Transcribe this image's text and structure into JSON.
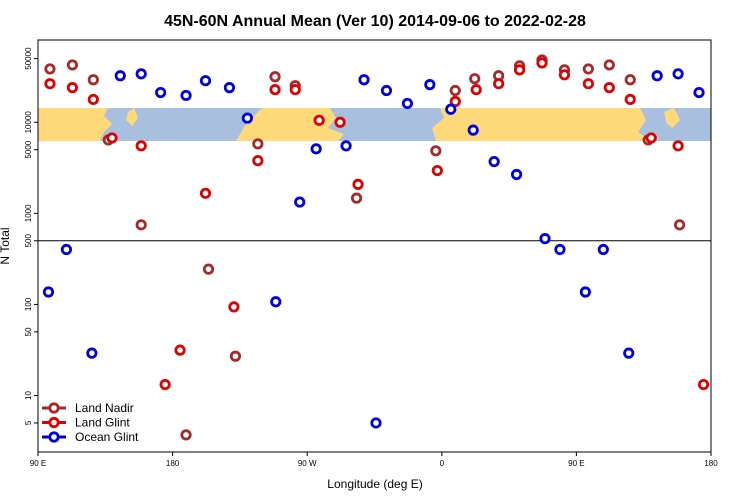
{
  "chart_data": {
    "type": "scatter",
    "title": "45N-60N Annual Mean (Ver 10)   2014-09-06 to 2022-02-28",
    "xlabel": "Longitude (deg E)",
    "ylabel": "N Total",
    "xlim": [
      90,
      540
    ],
    "xticks": [
      {
        "value": 90,
        "label": "90 E"
      },
      180,
      {
        "value": 270,
        "label": "90 W"
      },
      {
        "value": 360,
        "label": "0"
      },
      {
        "value": 450,
        "label": "90 E"
      },
      {
        "value": 540,
        "label": "180"
      }
    ],
    "ylim": [
      2.4,
      80000
    ],
    "yticks": [
      5,
      10,
      50,
      100,
      500,
      1000,
      5000,
      10000,
      50000
    ],
    "log_y": true,
    "hline": 500,
    "legend": "lower left",
    "series": [
      {
        "name": "Land Nadir",
        "color": "#a52a2a",
        "x": [
          98,
          113,
          127,
          137,
          159,
          189,
          204,
          222,
          237,
          248.5,
          262,
          303,
          356,
          369,
          382,
          398,
          412,
          427,
          442,
          458,
          472,
          486,
          498,
          519
        ],
        "values": [
          38500,
          42600,
          29300,
          6400,
          748,
          3.7,
          244,
          27,
          5790,
          31600,
          25200,
          1470,
          4860,
          22300,
          30100,
          32400,
          41600,
          48300,
          37600,
          38500,
          42600,
          29300,
          6400,
          748
        ]
      },
      {
        "name": "Land Glint",
        "color": "#e00000",
        "x": [
          98,
          113,
          127,
          139.5,
          159,
          175,
          185,
          202,
          221,
          237,
          248.5,
          262,
          278,
          292,
          304,
          357,
          369,
          383,
          398,
          412,
          427,
          442,
          458,
          472,
          486,
          500,
          518,
          535
        ],
        "values": [
          26500,
          24000,
          17800,
          6730,
          5510,
          13.2,
          31.5,
          1660,
          94,
          3790,
          22800,
          22800,
          10500,
          10000,
          2080,
          2950,
          16900,
          22800,
          26500,
          37600,
          44800,
          33200,
          26500,
          24000,
          17800,
          6730,
          5510,
          13.2
        ]
      },
      {
        "name": "Ocean Glint",
        "color": "#0000e0",
        "x": [
          97,
          109,
          126,
          145,
          159,
          172,
          189,
          202,
          218,
          230,
          249,
          265,
          276,
          296,
          308,
          316,
          323,
          337,
          352,
          366,
          381,
          395,
          410,
          429,
          439,
          456,
          468,
          485,
          504,
          518,
          532
        ],
        "values": [
          137,
          401,
          29.2,
          32400,
          34000,
          21200,
          19700,
          28600,
          24000,
          11100,
          107,
          1330,
          5110,
          5510,
          29300,
          5.0,
          22300,
          16100,
          25900,
          13900,
          8200,
          3700,
          2670,
          528,
          401,
          137,
          401,
          29.2,
          32400,
          34000,
          21200
        ]
      }
    ]
  }
}
